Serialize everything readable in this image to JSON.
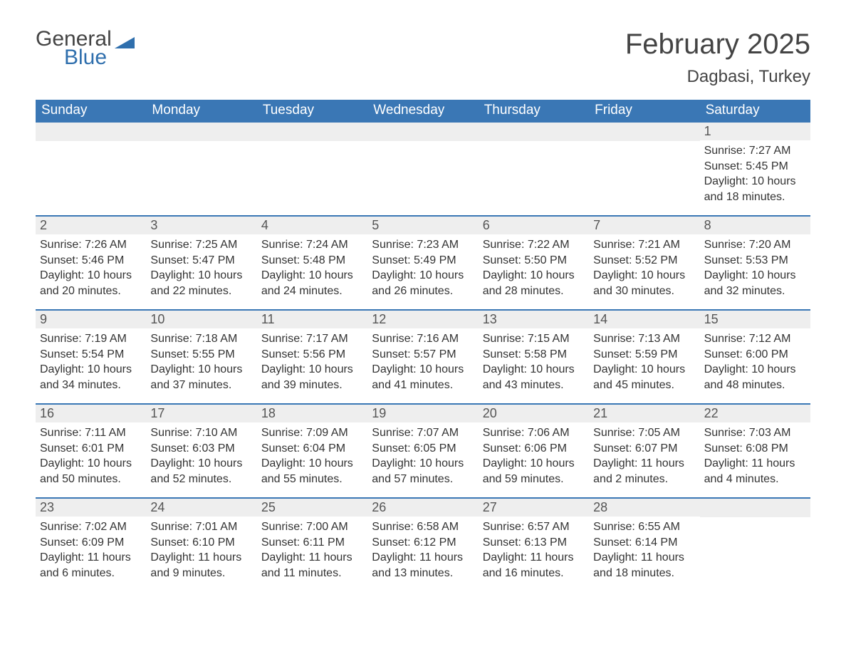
{
  "brand": {
    "text1": "General",
    "text2": "Blue",
    "text1_color": "#444444",
    "text2_color": "#2f6fad",
    "icon_color": "#2f6fad"
  },
  "header": {
    "title": "February 2025",
    "location": "Dagbasi, Turkey"
  },
  "colors": {
    "header_bg": "#3a77b5",
    "header_text": "#ffffff",
    "daynum_bg": "#eeeeee",
    "daynum_text": "#555555",
    "body_text": "#333333",
    "divider": "#3a77b5",
    "page_bg": "#ffffff"
  },
  "weekdays": [
    "Sunday",
    "Monday",
    "Tuesday",
    "Wednesday",
    "Thursday",
    "Friday",
    "Saturday"
  ],
  "weeks": [
    [
      {
        "day": "",
        "sunrise": "",
        "sunset": "",
        "daylight1": "",
        "daylight2": ""
      },
      {
        "day": "",
        "sunrise": "",
        "sunset": "",
        "daylight1": "",
        "daylight2": ""
      },
      {
        "day": "",
        "sunrise": "",
        "sunset": "",
        "daylight1": "",
        "daylight2": ""
      },
      {
        "day": "",
        "sunrise": "",
        "sunset": "",
        "daylight1": "",
        "daylight2": ""
      },
      {
        "day": "",
        "sunrise": "",
        "sunset": "",
        "daylight1": "",
        "daylight2": ""
      },
      {
        "day": "",
        "sunrise": "",
        "sunset": "",
        "daylight1": "",
        "daylight2": ""
      },
      {
        "day": "1",
        "sunrise": "Sunrise: 7:27 AM",
        "sunset": "Sunset: 5:45 PM",
        "daylight1": "Daylight: 10 hours",
        "daylight2": "and 18 minutes."
      }
    ],
    [
      {
        "day": "2",
        "sunrise": "Sunrise: 7:26 AM",
        "sunset": "Sunset: 5:46 PM",
        "daylight1": "Daylight: 10 hours",
        "daylight2": "and 20 minutes."
      },
      {
        "day": "3",
        "sunrise": "Sunrise: 7:25 AM",
        "sunset": "Sunset: 5:47 PM",
        "daylight1": "Daylight: 10 hours",
        "daylight2": "and 22 minutes."
      },
      {
        "day": "4",
        "sunrise": "Sunrise: 7:24 AM",
        "sunset": "Sunset: 5:48 PM",
        "daylight1": "Daylight: 10 hours",
        "daylight2": "and 24 minutes."
      },
      {
        "day": "5",
        "sunrise": "Sunrise: 7:23 AM",
        "sunset": "Sunset: 5:49 PM",
        "daylight1": "Daylight: 10 hours",
        "daylight2": "and 26 minutes."
      },
      {
        "day": "6",
        "sunrise": "Sunrise: 7:22 AM",
        "sunset": "Sunset: 5:50 PM",
        "daylight1": "Daylight: 10 hours",
        "daylight2": "and 28 minutes."
      },
      {
        "day": "7",
        "sunrise": "Sunrise: 7:21 AM",
        "sunset": "Sunset: 5:52 PM",
        "daylight1": "Daylight: 10 hours",
        "daylight2": "and 30 minutes."
      },
      {
        "day": "8",
        "sunrise": "Sunrise: 7:20 AM",
        "sunset": "Sunset: 5:53 PM",
        "daylight1": "Daylight: 10 hours",
        "daylight2": "and 32 minutes."
      }
    ],
    [
      {
        "day": "9",
        "sunrise": "Sunrise: 7:19 AM",
        "sunset": "Sunset: 5:54 PM",
        "daylight1": "Daylight: 10 hours",
        "daylight2": "and 34 minutes."
      },
      {
        "day": "10",
        "sunrise": "Sunrise: 7:18 AM",
        "sunset": "Sunset: 5:55 PM",
        "daylight1": "Daylight: 10 hours",
        "daylight2": "and 37 minutes."
      },
      {
        "day": "11",
        "sunrise": "Sunrise: 7:17 AM",
        "sunset": "Sunset: 5:56 PM",
        "daylight1": "Daylight: 10 hours",
        "daylight2": "and 39 minutes."
      },
      {
        "day": "12",
        "sunrise": "Sunrise: 7:16 AM",
        "sunset": "Sunset: 5:57 PM",
        "daylight1": "Daylight: 10 hours",
        "daylight2": "and 41 minutes."
      },
      {
        "day": "13",
        "sunrise": "Sunrise: 7:15 AM",
        "sunset": "Sunset: 5:58 PM",
        "daylight1": "Daylight: 10 hours",
        "daylight2": "and 43 minutes."
      },
      {
        "day": "14",
        "sunrise": "Sunrise: 7:13 AM",
        "sunset": "Sunset: 5:59 PM",
        "daylight1": "Daylight: 10 hours",
        "daylight2": "and 45 minutes."
      },
      {
        "day": "15",
        "sunrise": "Sunrise: 7:12 AM",
        "sunset": "Sunset: 6:00 PM",
        "daylight1": "Daylight: 10 hours",
        "daylight2": "and 48 minutes."
      }
    ],
    [
      {
        "day": "16",
        "sunrise": "Sunrise: 7:11 AM",
        "sunset": "Sunset: 6:01 PM",
        "daylight1": "Daylight: 10 hours",
        "daylight2": "and 50 minutes."
      },
      {
        "day": "17",
        "sunrise": "Sunrise: 7:10 AM",
        "sunset": "Sunset: 6:03 PM",
        "daylight1": "Daylight: 10 hours",
        "daylight2": "and 52 minutes."
      },
      {
        "day": "18",
        "sunrise": "Sunrise: 7:09 AM",
        "sunset": "Sunset: 6:04 PM",
        "daylight1": "Daylight: 10 hours",
        "daylight2": "and 55 minutes."
      },
      {
        "day": "19",
        "sunrise": "Sunrise: 7:07 AM",
        "sunset": "Sunset: 6:05 PM",
        "daylight1": "Daylight: 10 hours",
        "daylight2": "and 57 minutes."
      },
      {
        "day": "20",
        "sunrise": "Sunrise: 7:06 AM",
        "sunset": "Sunset: 6:06 PM",
        "daylight1": "Daylight: 10 hours",
        "daylight2": "and 59 minutes."
      },
      {
        "day": "21",
        "sunrise": "Sunrise: 7:05 AM",
        "sunset": "Sunset: 6:07 PM",
        "daylight1": "Daylight: 11 hours",
        "daylight2": "and 2 minutes."
      },
      {
        "day": "22",
        "sunrise": "Sunrise: 7:03 AM",
        "sunset": "Sunset: 6:08 PM",
        "daylight1": "Daylight: 11 hours",
        "daylight2": "and 4 minutes."
      }
    ],
    [
      {
        "day": "23",
        "sunrise": "Sunrise: 7:02 AM",
        "sunset": "Sunset: 6:09 PM",
        "daylight1": "Daylight: 11 hours",
        "daylight2": "and 6 minutes."
      },
      {
        "day": "24",
        "sunrise": "Sunrise: 7:01 AM",
        "sunset": "Sunset: 6:10 PM",
        "daylight1": "Daylight: 11 hours",
        "daylight2": "and 9 minutes."
      },
      {
        "day": "25",
        "sunrise": "Sunrise: 7:00 AM",
        "sunset": "Sunset: 6:11 PM",
        "daylight1": "Daylight: 11 hours",
        "daylight2": "and 11 minutes."
      },
      {
        "day": "26",
        "sunrise": "Sunrise: 6:58 AM",
        "sunset": "Sunset: 6:12 PM",
        "daylight1": "Daylight: 11 hours",
        "daylight2": "and 13 minutes."
      },
      {
        "day": "27",
        "sunrise": "Sunrise: 6:57 AM",
        "sunset": "Sunset: 6:13 PM",
        "daylight1": "Daylight: 11 hours",
        "daylight2": "and 16 minutes."
      },
      {
        "day": "28",
        "sunrise": "Sunrise: 6:55 AM",
        "sunset": "Sunset: 6:14 PM",
        "daylight1": "Daylight: 11 hours",
        "daylight2": "and 18 minutes."
      },
      {
        "day": "",
        "sunrise": "",
        "sunset": "",
        "daylight1": "",
        "daylight2": ""
      }
    ]
  ]
}
